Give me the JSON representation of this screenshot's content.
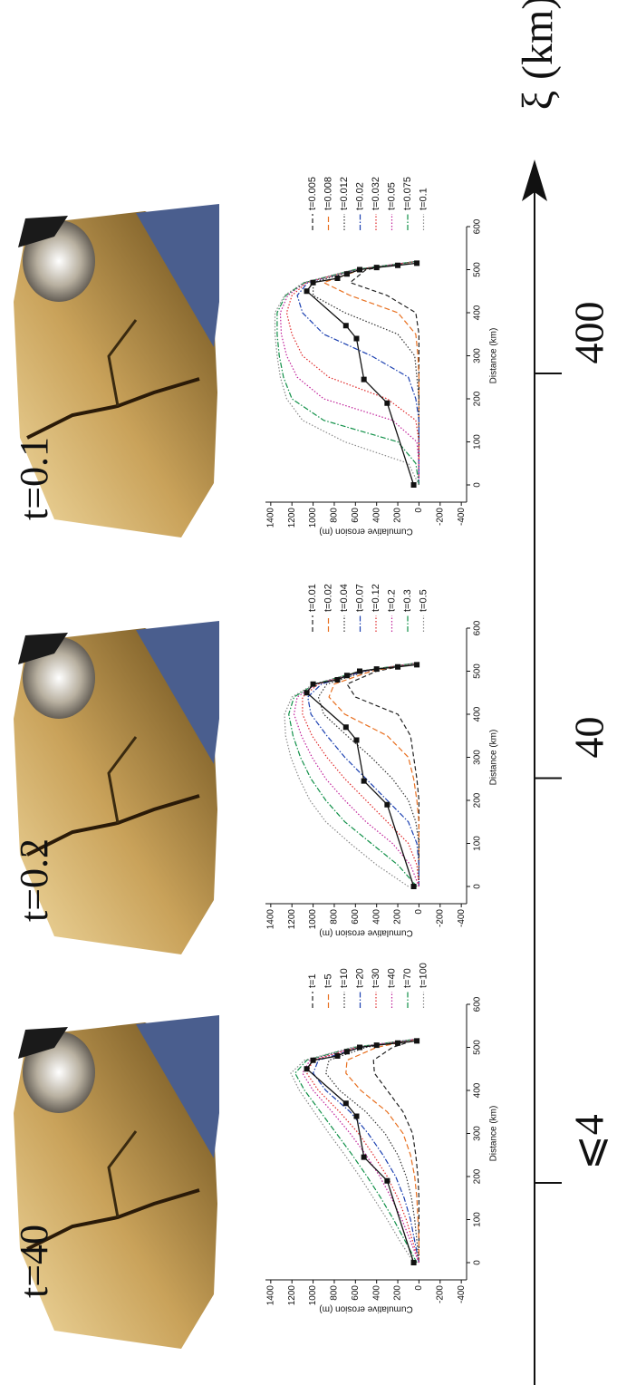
{
  "chart_data": [
    {
      "type": "line",
      "title": "t=40",
      "x_label": "Distance (km)",
      "y_label": "Cumulative erosion (m)",
      "x": [
        0,
        50,
        100,
        150,
        200,
        250,
        300,
        350,
        400,
        440,
        470,
        500,
        520
      ],
      "xlim": [
        -40,
        600
      ],
      "xticks": [
        0,
        100,
        200,
        300,
        400,
        500,
        600
      ],
      "ylim": [
        -450,
        1450
      ],
      "yticks": [
        -400,
        -200,
        0,
        200,
        400,
        600,
        800,
        1000,
        1200,
        1400
      ],
      "series": [
        {
          "name": "t=1",
          "color": "#222222",
          "values": [
            0,
            0,
            0,
            0,
            10,
            30,
            60,
            150,
            300,
            420,
            430,
            250,
            0
          ]
        },
        {
          "name": "t=5",
          "color": "#e87020",
          "values": [
            0,
            0,
            10,
            20,
            40,
            80,
            150,
            300,
            550,
            690,
            680,
            400,
            0
          ]
        },
        {
          "name": "t=10",
          "color": "#333333",
          "values": [
            0,
            20,
            40,
            70,
            120,
            200,
            320,
            500,
            750,
            880,
            850,
            500,
            0
          ]
        },
        {
          "name": "t=20",
          "color": "#1a3fb0",
          "values": [
            0,
            40,
            80,
            140,
            220,
            340,
            480,
            650,
            880,
            1000,
            950,
            550,
            0
          ]
        },
        {
          "name": "t=30",
          "color": "#e02828",
          "values": [
            0,
            60,
            120,
            200,
            300,
            430,
            570,
            750,
            950,
            1060,
            1000,
            580,
            0
          ]
        },
        {
          "name": "t=40",
          "color": "#c0209a",
          "values": [
            0,
            80,
            160,
            260,
            370,
            500,
            650,
            820,
            1000,
            1100,
            1030,
            600,
            0
          ]
        },
        {
          "name": "t=70",
          "color": "#109048",
          "values": [
            20,
            130,
            240,
            360,
            490,
            630,
            780,
            930,
            1080,
            1170,
            1060,
            620,
            0
          ]
        },
        {
          "name": "t=100",
          "color": "#8a8a8a",
          "values": [
            50,
            180,
            300,
            430,
            560,
            700,
            850,
            990,
            1130,
            1210,
            1080,
            630,
            0
          ]
        }
      ],
      "observed": {
        "x": [
          0,
          190,
          245,
          340,
          370,
          450,
          470,
          480,
          490,
          500,
          505,
          510,
          515
        ],
        "values": [
          50,
          300,
          520,
          590,
          690,
          1060,
          1000,
          770,
          680,
          560,
          400,
          200,
          20
        ]
      }
    },
    {
      "type": "line",
      "title": "t=0.2",
      "x_label": "Distance (km)",
      "y_label": "Cumulative erosion (m)",
      "x": [
        0,
        50,
        100,
        150,
        200,
        250,
        300,
        350,
        400,
        440,
        470,
        500,
        520
      ],
      "xlim": [
        -40,
        600
      ],
      "xticks": [
        0,
        100,
        200,
        300,
        400,
        500,
        600
      ],
      "ylim": [
        -450,
        1450
      ],
      "yticks": [
        -400,
        -200,
        0,
        200,
        400,
        600,
        800,
        1000,
        1200,
        1400
      ],
      "series": [
        {
          "name": "t=0.01",
          "color": "#222222",
          "values": [
            0,
            0,
            0,
            0,
            0,
            20,
            50,
            80,
            200,
            600,
            680,
            400,
            0
          ]
        },
        {
          "name": "t=0.02",
          "color": "#e87020",
          "values": [
            0,
            0,
            0,
            0,
            20,
            50,
            100,
            300,
            700,
            850,
            800,
            450,
            0
          ]
        },
        {
          "name": "t=0.04",
          "color": "#333333",
          "values": [
            0,
            0,
            0,
            30,
            100,
            250,
            450,
            680,
            900,
            950,
            870,
            500,
            0
          ]
        },
        {
          "name": "t=0.07",
          "color": "#1a3fb0",
          "values": [
            0,
            0,
            20,
            100,
            300,
            500,
            700,
            870,
            1020,
            1050,
            920,
            520,
            0
          ]
        },
        {
          "name": "t=0.12",
          "color": "#e02828",
          "values": [
            0,
            20,
            100,
            300,
            500,
            700,
            870,
            1010,
            1100,
            1100,
            950,
            540,
            0
          ]
        },
        {
          "name": "t=0.2",
          "color": "#c0209a",
          "values": [
            0,
            80,
            250,
            500,
            700,
            880,
            1010,
            1110,
            1180,
            1150,
            970,
            550,
            0
          ]
        },
        {
          "name": "t=0.3",
          "color": "#109048",
          "values": [
            20,
            200,
            450,
            700,
            880,
            1020,
            1120,
            1190,
            1230,
            1180,
            980,
            560,
            0
          ]
        },
        {
          "name": "t=0.5",
          "color": "#8a8a8a",
          "values": [
            100,
            400,
            650,
            880,
            1030,
            1130,
            1210,
            1260,
            1270,
            1200,
            990,
            560,
            0
          ]
        }
      ],
      "observed": {
        "x": [
          0,
          190,
          245,
          340,
          370,
          450,
          470,
          480,
          490,
          500,
          505,
          510,
          515
        ],
        "values": [
          50,
          300,
          520,
          590,
          690,
          1060,
          1000,
          770,
          680,
          560,
          400,
          200,
          20
        ]
      }
    },
    {
      "type": "line",
      "title": "t=0.1",
      "x_label": "Distance (km)",
      "y_label": "Cumulative erosion (m)",
      "x": [
        0,
        50,
        100,
        150,
        200,
        250,
        300,
        350,
        400,
        440,
        470,
        500,
        520
      ],
      "xlim": [
        -40,
        600
      ],
      "xticks": [
        0,
        100,
        200,
        300,
        400,
        500,
        600
      ],
      "ylim": [
        -450,
        1450
      ],
      "yticks": [
        -400,
        -200,
        0,
        200,
        400,
        600,
        800,
        1000,
        1200,
        1400
      ],
      "series": [
        {
          "name": "t=0.005",
          "color": "#222222",
          "values": [
            0,
            0,
            0,
            0,
            0,
            0,
            0,
            0,
            30,
            300,
            650,
            500,
            0
          ]
        },
        {
          "name": "t=0.008",
          "color": "#e87020",
          "values": [
            0,
            0,
            0,
            0,
            0,
            0,
            10,
            30,
            200,
            650,
            900,
            550,
            0
          ]
        },
        {
          "name": "t=0.012",
          "color": "#333333",
          "values": [
            0,
            0,
            0,
            0,
            0,
            20,
            40,
            200,
            700,
            1000,
            1000,
            580,
            0
          ]
        },
        {
          "name": "t=0.02",
          "color": "#1a3fb0",
          "values": [
            0,
            0,
            0,
            0,
            30,
            100,
            450,
            900,
            1100,
            1150,
            1050,
            600,
            0
          ]
        },
        {
          "name": "t=0.032",
          "color": "#e02828",
          "values": [
            0,
            0,
            0,
            30,
            300,
            850,
            1100,
            1200,
            1250,
            1200,
            1060,
            600,
            0
          ]
        },
        {
          "name": "t=0.05",
          "color": "#c0209a",
          "values": [
            0,
            0,
            20,
            250,
            900,
            1150,
            1250,
            1300,
            1310,
            1240,
            1070,
            610,
            0
          ]
        },
        {
          "name": "t=0.075",
          "color": "#109048",
          "values": [
            0,
            30,
            200,
            900,
            1200,
            1280,
            1320,
            1340,
            1340,
            1260,
            1080,
            610,
            0
          ]
        },
        {
          "name": "t=0.1",
          "color": "#8a8a8a",
          "values": [
            0,
            100,
            700,
            1100,
            1250,
            1310,
            1340,
            1360,
            1360,
            1270,
            1090,
            620,
            0
          ]
        }
      ],
      "observed": {
        "x": [
          0,
          190,
          245,
          340,
          370,
          450,
          470,
          480,
          490,
          500,
          505,
          510,
          515
        ],
        "values": [
          50,
          300,
          520,
          590,
          690,
          1060,
          1000,
          770,
          680,
          560,
          400,
          200,
          20
        ]
      }
    }
  ],
  "scale_axis": {
    "label": "ξ (km)",
    "ticks": [
      "⩽4",
      "40",
      "400"
    ]
  }
}
